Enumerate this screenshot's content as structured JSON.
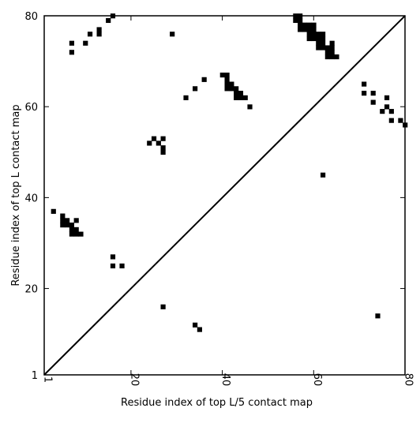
{
  "chart_data": {
    "type": "heatmap",
    "title": "",
    "xlabel": "Residue index of top L/5 contact map",
    "ylabel": "Residue index of top L contact map",
    "xlim": [
      1,
      80
    ],
    "ylim": [
      1,
      80
    ],
    "x_ticks": [
      1,
      20,
      40,
      60,
      80
    ],
    "y_ticks": [
      1,
      20,
      40,
      60,
      80
    ],
    "x_tick_labels": [
      "1",
      "20",
      "40",
      "60",
      "80"
    ],
    "y_tick_labels": [
      "1",
      "20",
      "40",
      "60",
      "80"
    ],
    "diagonal": true,
    "colors": {
      "contact": "#000000",
      "background": "#ffffff"
    },
    "cells": [
      [
        16,
        80
      ],
      [
        15,
        79
      ],
      [
        13,
        77
      ],
      [
        11,
        76
      ],
      [
        13,
        76
      ],
      [
        29,
        76
      ],
      [
        7,
        74
      ],
      [
        10,
        74
      ],
      [
        7,
        72
      ],
      [
        56,
        79
      ],
      [
        57,
        79
      ],
      [
        56,
        80
      ],
      [
        57,
        80
      ],
      [
        57,
        78
      ],
      [
        58,
        78
      ],
      [
        59,
        78
      ],
      [
        60,
        78
      ],
      [
        57,
        77
      ],
      [
        58,
        77
      ],
      [
        59,
        77
      ],
      [
        60,
        77
      ],
      [
        59,
        76
      ],
      [
        60,
        76
      ],
      [
        61,
        76
      ],
      [
        62,
        76
      ],
      [
        59,
        75
      ],
      [
        60,
        75
      ],
      [
        61,
        75
      ],
      [
        62,
        75
      ],
      [
        61,
        74
      ],
      [
        62,
        74
      ],
      [
        64,
        74
      ],
      [
        61,
        73
      ],
      [
        62,
        73
      ],
      [
        63,
        73
      ],
      [
        64,
        73
      ],
      [
        63,
        72
      ],
      [
        64,
        72
      ],
      [
        63,
        71
      ],
      [
        64,
        71
      ],
      [
        65,
        71
      ],
      [
        40,
        67
      ],
      [
        41,
        67
      ],
      [
        41,
        66
      ],
      [
        36,
        66
      ],
      [
        41,
        65
      ],
      [
        42,
        65
      ],
      [
        41,
        64
      ],
      [
        42,
        64
      ],
      [
        43,
        64
      ],
      [
        34,
        64
      ],
      [
        43,
        63
      ],
      [
        44,
        63
      ],
      [
        43,
        62
      ],
      [
        44,
        62
      ],
      [
        45,
        62
      ],
      [
        32,
        62
      ],
      [
        46,
        60
      ],
      [
        71,
        65
      ],
      [
        71,
        63
      ],
      [
        73,
        63
      ],
      [
        73,
        61
      ],
      [
        76,
        62
      ],
      [
        76,
        60
      ],
      [
        75,
        59
      ],
      [
        77,
        59
      ],
      [
        79,
        57
      ],
      [
        77,
        57
      ],
      [
        80,
        56
      ],
      [
        25,
        53
      ],
      [
        27,
        53
      ],
      [
        24,
        52
      ],
      [
        26,
        52
      ],
      [
        27,
        51
      ],
      [
        27,
        50
      ],
      [
        62,
        45
      ],
      [
        3,
        37
      ],
      [
        5,
        36
      ],
      [
        5,
        35
      ],
      [
        6,
        35
      ],
      [
        8,
        35
      ],
      [
        5,
        34
      ],
      [
        6,
        34
      ],
      [
        7,
        34
      ],
      [
        7,
        33
      ],
      [
        8,
        33
      ],
      [
        7,
        32
      ],
      [
        8,
        32
      ],
      [
        9,
        32
      ],
      [
        16,
        27
      ],
      [
        16,
        25
      ],
      [
        18,
        25
      ],
      [
        27,
        16
      ],
      [
        74,
        14
      ],
      [
        34,
        12
      ],
      [
        35,
        11
      ]
    ]
  }
}
